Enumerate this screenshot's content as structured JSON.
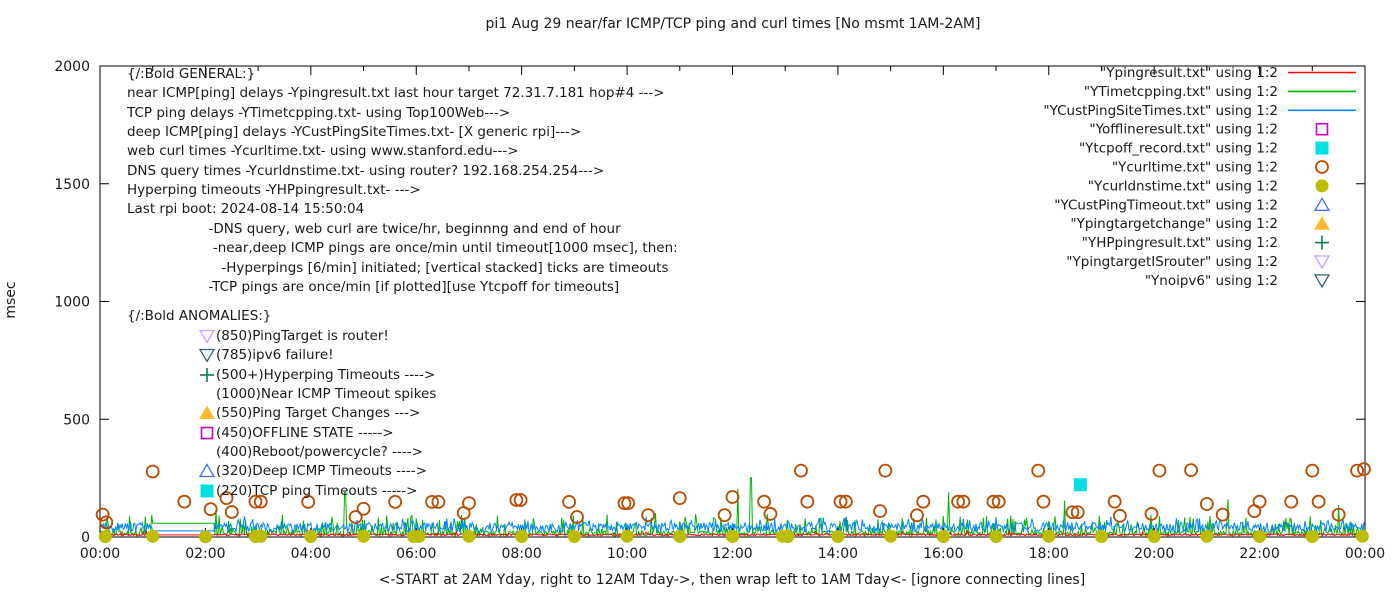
{
  "title": "pi1 Aug 29  near/far ICMP/TCP ping and curl times [No msmt 1AM-2AM]",
  "ylabel": "msec",
  "xlabel": "<-START at 2AM Yday, right to 12AM Tday->, then wrap left to 1AM Tday<- [ignore connecting lines]",
  "chart_data": {
    "type": "line+scatter",
    "x_range_hours": [
      0,
      24
    ],
    "ylim": [
      0,
      2000
    ],
    "grid": false,
    "ytick_values": [
      0,
      500,
      1000,
      1500,
      2000
    ],
    "ytick_labels": [
      "0",
      "500",
      "1000",
      "1500",
      "2000"
    ],
    "xtick_hours": [
      0,
      2,
      4,
      6,
      8,
      10,
      12,
      14,
      16,
      18,
      20,
      22,
      24
    ],
    "xtick_labels": [
      "00:00",
      "02:00",
      "04:00",
      "06:00",
      "08:00",
      "10:00",
      "12:00",
      "14:00",
      "16:00",
      "18:00",
      "20:00",
      "22:00",
      "00:00"
    ],
    "no_msmt_gap_hours": [
      1.0,
      2.17
    ],
    "legend_position": "top-right",
    "legend": [
      {
        "label": "\"Ypingresult.txt\" using 1:2",
        "marker": "line",
        "color": "#ff0000"
      },
      {
        "label": "\"YTimetcpping.txt\" using 1:2",
        "marker": "line",
        "color": "#00b400"
      },
      {
        "label": "\"YCustPingSiteTimes.txt\" using 1:2",
        "marker": "line",
        "color": "#0084ff"
      },
      {
        "label": "\"Yofflineresult.txt\" using 1:2",
        "marker": "open-square",
        "color": "#c800c8"
      },
      {
        "label": "\"Ytcpoff_record.txt\" using 1:2",
        "marker": "filled-square",
        "color": "#00e0e0"
      },
      {
        "label": "\"Ycurltime.txt\" using 1:2",
        "marker": "open-circle",
        "color": "#b84c00"
      },
      {
        "label": "\"Ycurldnstime.txt\" using 1:2",
        "marker": "filled-circle",
        "color": "#bcbc00"
      },
      {
        "label": "\"YCustPingTimeout.txt\" using 1:2",
        "marker": "open-triangle-up",
        "color": "#4472e8"
      },
      {
        "label": "\"Ypingtargetchange\" using 1:2",
        "marker": "filled-triangle-up",
        "color": "#ffb830"
      },
      {
        "label": "\"YHPpingresult.txt\" using 1:2",
        "marker": "plus",
        "color": "#0e7a52"
      },
      {
        "label": "\"YpingtargetISrouter\" using 1:2",
        "marker": "open-triangle-down",
        "color": "#cf9cff"
      },
      {
        "label": "\"Ynoipv6\" using 1:2",
        "marker": "open-triangle-down",
        "color": "#35607a"
      }
    ],
    "line_series": [
      {
        "name": "TCP ping delays -YTimetcpping.txt-",
        "color": "#00b400",
        "base": 4,
        "noise": 22,
        "spike_chance": 0.28,
        "spike_max": 75,
        "gap_value": 58,
        "seed": 1234,
        "use_extra_spikes": true
      },
      {
        "name": "deep ICMP delays -YCustPingSiteTimes.txt-",
        "color": "#0084ff",
        "base": 20,
        "noise": 42,
        "spike_chance": 0.15,
        "spike_max": 30,
        "gap_value": 26,
        "seed": 5678
      },
      {
        "name": "near ICMP delays -Ypingresult.txt-",
        "color": "#ff0000",
        "base": 6,
        "noise": 8,
        "spike_chance": 0.03,
        "spike_max": 18,
        "gap_value": 9,
        "seed": 999
      }
    ],
    "green_extra_spikes_hour_msec": [
      [
        2.2,
        115
      ],
      [
        4.65,
        190
      ],
      [
        12.1,
        205
      ],
      [
        12.35,
        252
      ],
      [
        16.1,
        190
      ],
      [
        18.3,
        155
      ],
      [
        21.4,
        160
      ],
      [
        23.5,
        135
      ]
    ],
    "scatter_series": [
      {
        "name": "Ycurltime web curl times",
        "marker": "open-circle",
        "color": "#b84c00",
        "points_hour_msec": [
          [
            0.05,
            95
          ],
          [
            0.12,
            62
          ],
          [
            1.0,
            278
          ],
          [
            1.6,
            150
          ],
          [
            2.1,
            118
          ],
          [
            2.4,
            165
          ],
          [
            2.5,
            106
          ],
          [
            2.95,
            150
          ],
          [
            3.05,
            150
          ],
          [
            3.95,
            149
          ],
          [
            4.85,
            85
          ],
          [
            5.0,
            120
          ],
          [
            5.6,
            149
          ],
          [
            6.3,
            149
          ],
          [
            6.42,
            149
          ],
          [
            6.9,
            102
          ],
          [
            7.0,
            144
          ],
          [
            7.9,
            157
          ],
          [
            7.98,
            157
          ],
          [
            8.9,
            149
          ],
          [
            9.05,
            85
          ],
          [
            9.95,
            144
          ],
          [
            10.02,
            144
          ],
          [
            10.4,
            93
          ],
          [
            11.0,
            165
          ],
          [
            11.85,
            93
          ],
          [
            12.0,
            170
          ],
          [
            12.6,
            150
          ],
          [
            12.72,
            98
          ],
          [
            13.3,
            282
          ],
          [
            13.42,
            150
          ],
          [
            14.05,
            150
          ],
          [
            14.15,
            150
          ],
          [
            14.8,
            110
          ],
          [
            14.9,
            282
          ],
          [
            15.5,
            92
          ],
          [
            15.62,
            150
          ],
          [
            16.28,
            150
          ],
          [
            16.38,
            150
          ],
          [
            16.95,
            150
          ],
          [
            17.05,
            150
          ],
          [
            17.8,
            282
          ],
          [
            17.9,
            150
          ],
          [
            18.45,
            105
          ],
          [
            18.55,
            105
          ],
          [
            19.25,
            150
          ],
          [
            19.35,
            90
          ],
          [
            19.95,
            98
          ],
          [
            20.1,
            282
          ],
          [
            20.7,
            284
          ],
          [
            21.0,
            140
          ],
          [
            21.3,
            95
          ],
          [
            21.9,
            110
          ],
          [
            22.0,
            150
          ],
          [
            22.6,
            150
          ],
          [
            23.0,
            282
          ],
          [
            23.12,
            150
          ],
          [
            23.5,
            95
          ],
          [
            23.85,
            282
          ],
          [
            23.98,
            288
          ]
        ]
      },
      {
        "name": "Ycurldnstime DNS query times",
        "marker": "filled-circle",
        "color": "#bcbc00",
        "points_hour_msec": [
          [
            0.1,
            2
          ],
          [
            1.0,
            3
          ],
          [
            2.0,
            1
          ],
          [
            2.95,
            2
          ],
          [
            3.05,
            3
          ],
          [
            4.0,
            2
          ],
          [
            5.0,
            3
          ],
          [
            5.95,
            2
          ],
          [
            6.05,
            2
          ],
          [
            7.0,
            3
          ],
          [
            8.0,
            2
          ],
          [
            9.0,
            2
          ],
          [
            10.0,
            3
          ],
          [
            11.0,
            2
          ],
          [
            12.0,
            2
          ],
          [
            12.95,
            3
          ],
          [
            13.05,
            2
          ],
          [
            14.0,
            2
          ],
          [
            15.0,
            3
          ],
          [
            16.0,
            2
          ],
          [
            17.0,
            2
          ],
          [
            18.0,
            3
          ],
          [
            19.0,
            2
          ],
          [
            20.0,
            2
          ],
          [
            21.0,
            3
          ],
          [
            22.0,
            2
          ],
          [
            23.0,
            2
          ],
          [
            23.95,
            3
          ]
        ]
      },
      {
        "name": "Ytcpoff_record TCP ping timeouts",
        "marker": "filled-square",
        "color": "#00e0e0",
        "points_hour_msec": [
          [
            18.6,
            222
          ]
        ]
      }
    ],
    "annotations_general": [
      "{/:Bold GENERAL:}",
      "near ICMP[ping] delays -Ypingresult.txt last hour target 72.31.7.181 hop#4 --->",
      "TCP ping delays -YTimetcpping.txt- using Top100Web--->",
      "deep ICMP[ping] delays -YCustPingSiteTimes.txt- [X generic rpi]--->",
      "web curl times -Ycurltime.txt- using www.stanford.edu--->",
      "DNS query times -Ycurldnstime.txt- using router? 192.168.254.254--->",
      "Hyperping timeouts -YHPpingresult.txt- --->",
      "Last rpi boot: 2024-08-14 15:50:04",
      "                   -DNS query, web curl are twice/hr, beginnng and end of hour",
      "                    -near,deep ICMP pings are once/min until timeout[1000 msec], then:",
      "                      -Hyperpings [6/min] initiated; [vertical stacked] ticks are timeouts",
      "                   -TCP pings are once/min [if plotted][use Ytcpoff for timeouts]"
    ],
    "annotations_anomalies_header": "{/:Bold ANOMALIES:}",
    "annotations_anomalies": [
      {
        "marker": "open-triangle-down",
        "color": "#cf9cff",
        "text": "(850)PingTarget is router!"
      },
      {
        "marker": "open-triangle-down",
        "color": "#35607a",
        "text": "(785)ipv6 failure!"
      },
      {
        "marker": "plus",
        "color": "#0e7a52",
        "text": "(500+)Hyperping Timeouts ---->"
      },
      {
        "marker": null,
        "color": null,
        "text": "(1000)Near ICMP Timeout spikes"
      },
      {
        "marker": "filled-triangle-up",
        "color": "#ffb830",
        "text": "(550)Ping Target Changes --->"
      },
      {
        "marker": "open-square",
        "color": "#c800c8",
        "text": "(450)OFFLINE STATE ----->"
      },
      {
        "marker": null,
        "color": null,
        "text": "(400)Reboot/powercycle? ---->"
      },
      {
        "marker": "open-triangle-up",
        "color": "#4472e8",
        "text": "(320)Deep ICMP Timeouts ---->"
      },
      {
        "marker": "filled-square",
        "color": "#00e0e0",
        "text": "(220)TCP ping Timeouts ----->"
      }
    ]
  }
}
